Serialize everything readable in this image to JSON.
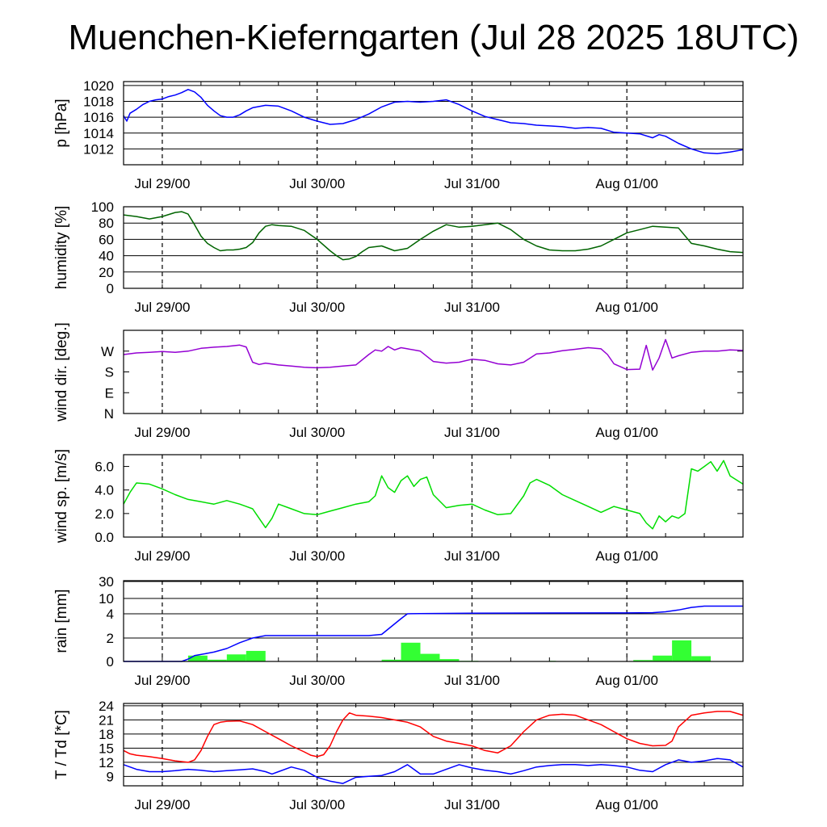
{
  "title": "Muenchen-Kieferngarten (Jul 28 2025 18UTC)",
  "chart_data": [
    {
      "type": "line",
      "name": "pressure",
      "ylabel": "p [hPa]",
      "ylim": [
        1010,
        1020.5
      ],
      "yticks": [
        "1012",
        "1014",
        "1016",
        "1018",
        "1020"
      ],
      "ytick_values": [
        1012,
        1014,
        1016,
        1018,
        1020
      ],
      "xticks": [
        "Jul 29/00",
        "Jul 30/00",
        "Jul 31/00",
        "Aug 01/00"
      ],
      "xtick_hours": [
        6,
        30,
        54,
        78
      ],
      "xlim_hours": [
        0,
        96
      ],
      "color": "#0000ff",
      "series": [
        {
          "x": [
            0,
            0.5,
            1,
            2,
            3,
            4,
            5,
            6,
            7,
            8,
            9,
            10,
            11,
            12,
            13,
            14,
            15,
            16,
            17,
            18,
            19,
            20,
            22,
            24,
            26,
            28,
            30,
            32,
            34,
            36,
            38,
            40,
            42,
            44,
            46,
            48,
            50,
            52,
            54,
            56,
            58,
            60,
            62,
            64,
            66,
            68,
            70,
            72,
            74,
            76,
            78,
            80,
            82,
            83,
            84,
            86,
            88,
            90,
            92,
            94,
            96
          ],
          "y": [
            1016.2,
            1015.5,
            1016.5,
            1017.0,
            1017.6,
            1018.0,
            1018.2,
            1018.3,
            1018.6,
            1018.8,
            1019.1,
            1019.5,
            1019.2,
            1018.5,
            1017.5,
            1016.8,
            1016.2,
            1016.0,
            1016.0,
            1016.3,
            1016.8,
            1017.2,
            1017.5,
            1017.4,
            1016.8,
            1016.0,
            1015.5,
            1015.1,
            1015.2,
            1015.7,
            1016.4,
            1017.3,
            1017.9,
            1018.0,
            1017.9,
            1018.0,
            1018.2,
            1017.6,
            1016.8,
            1016.1,
            1015.7,
            1015.3,
            1015.2,
            1015.0,
            1014.9,
            1014.8,
            1014.6,
            1014.7,
            1014.6,
            1014.1,
            1014.0,
            1013.9,
            1013.4,
            1013.8,
            1013.6,
            1012.7,
            1012.0,
            1011.5,
            1011.4,
            1011.6,
            1011.9
          ]
        }
      ]
    },
    {
      "type": "line",
      "name": "humidity",
      "ylabel": "humidity [%]",
      "ylim": [
        0,
        100
      ],
      "yticks": [
        "0",
        "20",
        "40",
        "60",
        "80",
        "100"
      ],
      "ytick_values": [
        0,
        20,
        40,
        60,
        80,
        100
      ],
      "xticks": [
        "Jul 29/00",
        "Jul 30/00",
        "Jul 31/00",
        "Aug 01/00"
      ],
      "xtick_hours": [
        6,
        30,
        54,
        78
      ],
      "xlim_hours": [
        0,
        96
      ],
      "color": "#006400",
      "series": [
        {
          "x": [
            0,
            2,
            4,
            6,
            8,
            9,
            10,
            11,
            12,
            13,
            14,
            15,
            16,
            17,
            18,
            19,
            20,
            21,
            22,
            23,
            24,
            26,
            28,
            30,
            32,
            33,
            34,
            35,
            36,
            37,
            38,
            40,
            42,
            44,
            46,
            48,
            50,
            52,
            54,
            56,
            58,
            60,
            62,
            64,
            66,
            68,
            70,
            72,
            74,
            76,
            78,
            80,
            82,
            84,
            86,
            88,
            90,
            92,
            94,
            96
          ],
          "y": [
            90,
            88,
            85,
            88,
            93,
            94,
            91,
            78,
            64,
            55,
            50,
            46,
            47,
            47,
            48,
            50,
            56,
            68,
            76,
            78,
            77,
            76,
            71,
            60,
            46,
            40,
            35,
            36,
            39,
            45,
            50,
            52,
            46,
            49,
            60,
            70,
            78,
            75,
            76,
            78,
            80,
            72,
            60,
            52,
            47,
            46,
            46,
            48,
            52,
            60,
            68,
            72,
            76,
            75,
            74,
            55,
            52,
            48,
            45,
            44
          ]
        }
      ]
    },
    {
      "type": "line",
      "name": "wind-direction",
      "ylabel": "wind dir. [deg.]",
      "ylim": [
        0,
        360
      ],
      "yticks": [
        "N",
        "E",
        "S",
        "W"
      ],
      "ytick_values": [
        0,
        90,
        180,
        270
      ],
      "xticks": [
        "Jul 29/00",
        "Jul 30/00",
        "Jul 31/00",
        "Aug 01/00"
      ],
      "xtick_hours": [
        6,
        30,
        54,
        78
      ],
      "xlim_hours": [
        0,
        96
      ],
      "color": "#9400d3",
      "series": [
        {
          "x": [
            0,
            2,
            4,
            6,
            8,
            10,
            12,
            14,
            16,
            18,
            19,
            20,
            21,
            22,
            24,
            26,
            28,
            30,
            32,
            34,
            36,
            38,
            39,
            40,
            41,
            42,
            43,
            44,
            46,
            48,
            50,
            52,
            54,
            56,
            58,
            60,
            62,
            64,
            66,
            68,
            70,
            72,
            74,
            75,
            76,
            78,
            80,
            81,
            82,
            83,
            84,
            85,
            86,
            88,
            90,
            92,
            94,
            96
          ],
          "y": [
            255,
            262,
            265,
            268,
            265,
            270,
            282,
            287,
            290,
            296,
            288,
            222,
            212,
            218,
            210,
            205,
            200,
            198,
            200,
            205,
            210,
            255,
            275,
            270,
            290,
            275,
            285,
            280,
            270,
            225,
            218,
            222,
            235,
            230,
            215,
            210,
            222,
            258,
            262,
            272,
            278,
            285,
            280,
            255,
            215,
            190,
            192,
            295,
            188,
            240,
            320,
            240,
            250,
            265,
            270,
            270,
            275,
            273
          ]
        }
      ]
    },
    {
      "type": "line",
      "name": "wind-speed",
      "ylabel": "wind sp. [m/s]",
      "ylim": [
        0,
        7
      ],
      "yticks": [
        "0.0",
        "2.0",
        "4.0",
        "6.0"
      ],
      "ytick_values": [
        0,
        2,
        4,
        6
      ],
      "xticks": [
        "Jul 29/00",
        "Jul 30/00",
        "Jul 31/00",
        "Aug 01/00"
      ],
      "xtick_hours": [
        6,
        30,
        54,
        78
      ],
      "xlim_hours": [
        0,
        96
      ],
      "color": "#00dd00",
      "series": [
        {
          "x": [
            0,
            1,
            2,
            4,
            6,
            8,
            10,
            12,
            14,
            16,
            18,
            19,
            20,
            21,
            22,
            23,
            24,
            26,
            28,
            30,
            32,
            34,
            36,
            38,
            39,
            40,
            41,
            42,
            43,
            44,
            45,
            46,
            47,
            48,
            50,
            52,
            54,
            56,
            58,
            60,
            62,
            63,
            64,
            66,
            68,
            70,
            72,
            74,
            76,
            78,
            80,
            81,
            82,
            83,
            84,
            85,
            86,
            87,
            88,
            89,
            90,
            91,
            92,
            93,
            94,
            96
          ],
          "y": [
            2.8,
            3.8,
            4.6,
            4.5,
            4.1,
            3.6,
            3.2,
            3.0,
            2.8,
            3.1,
            2.8,
            2.6,
            2.4,
            1.6,
            0.8,
            1.6,
            2.8,
            2.4,
            2.0,
            1.9,
            2.2,
            2.5,
            2.8,
            3.0,
            3.5,
            5.2,
            4.2,
            3.8,
            4.8,
            5.2,
            4.3,
            4.9,
            5.1,
            3.6,
            2.5,
            2.7,
            2.8,
            2.3,
            1.9,
            2.0,
            3.5,
            4.6,
            4.9,
            4.4,
            3.6,
            3.1,
            2.6,
            2.1,
            2.6,
            2.3,
            2.0,
            1.2,
            0.7,
            1.8,
            1.3,
            1.8,
            1.6,
            2.0,
            5.8,
            5.6,
            6.0,
            6.4,
            5.6,
            6.5,
            5.2,
            4.5
          ]
        }
      ]
    },
    {
      "type": "bar+line",
      "name": "rain",
      "ylabel": "rain [mm]",
      "yticks": [
        "0",
        "2",
        "4",
        "10",
        "30"
      ],
      "ytick_values": [
        0,
        2,
        4,
        10,
        30
      ],
      "xticks": [
        "Jul 29/00",
        "Jul 30/00",
        "Jul 31/00",
        "Aug 01/00"
      ],
      "xtick_hours": [
        6,
        30,
        54,
        78
      ],
      "xlim_hours": [
        0,
        96
      ],
      "bar_color": "#33ff33",
      "line_color": "#0000ff",
      "bars": {
        "x_start": [
          10,
          13,
          16,
          19,
          40,
          43,
          46,
          49,
          52,
          66,
          79,
          82,
          85,
          88
        ],
        "x_end": [
          13,
          16,
          19,
          22,
          43,
          46,
          49,
          52,
          55,
          67,
          82,
          85,
          88,
          91
        ],
        "values": [
          0.5,
          0.15,
          0.6,
          0.9,
          0.15,
          1.6,
          0.65,
          0.2,
          0.05,
          0.05,
          0.12,
          0.5,
          1.8,
          0.45
        ]
      },
      "series": [
        {
          "x": [
            0,
            9,
            10,
            11,
            13,
            14,
            16,
            18,
            19,
            20,
            22,
            30,
            38,
            40,
            43,
            44,
            46,
            52,
            54,
            66,
            78,
            82,
            84,
            86,
            88,
            90,
            96
          ],
          "y": [
            0,
            0,
            0.2,
            0.5,
            0.7,
            0.8,
            1.1,
            1.6,
            1.8,
            2.0,
            2.2,
            2.2,
            2.2,
            2.3,
            3.6,
            4.0,
            4.1,
            4.2,
            4.25,
            4.3,
            4.35,
            4.45,
            4.8,
            5.5,
            6.5,
            7.0,
            7.0
          ]
        }
      ]
    },
    {
      "type": "line",
      "name": "temperature-dewpoint",
      "ylabel": "T / Td [*C]",
      "ylim": [
        7,
        24.5
      ],
      "yticks": [
        "9",
        "12",
        "15",
        "18",
        "21",
        "24"
      ],
      "ytick_values": [
        9,
        12,
        15,
        18,
        21,
        24
      ],
      "xticks": [
        "Jul 29/00",
        "Jul 30/00",
        "Jul 31/00",
        "Aug 01/00"
      ],
      "xtick_hours": [
        6,
        30,
        54,
        78
      ],
      "xlim_hours": [
        0,
        96
      ],
      "series": [
        {
          "color": "#ff0000",
          "x": [
            0,
            1,
            2,
            4,
            6,
            8,
            10,
            11,
            12,
            13,
            14,
            15,
            16,
            18,
            20,
            22,
            24,
            26,
            28,
            29,
            30,
            31,
            32,
            33,
            34,
            35,
            36,
            38,
            40,
            42,
            44,
            46,
            48,
            50,
            52,
            54,
            56,
            58,
            60,
            62,
            64,
            66,
            68,
            70,
            72,
            74,
            76,
            78,
            80,
            82,
            84,
            85,
            86,
            88,
            90,
            92,
            94,
            96
          ],
          "y": [
            14.5,
            13.8,
            13.5,
            13.2,
            12.8,
            12.3,
            12.0,
            12.5,
            14.5,
            17.5,
            20.0,
            20.5,
            20.7,
            20.8,
            20.0,
            18.5,
            17.0,
            15.5,
            14.2,
            13.5,
            13.2,
            13.6,
            15.5,
            18.5,
            21.0,
            22.5,
            22.0,
            21.8,
            21.5,
            21.0,
            20.5,
            19.5,
            17.5,
            16.5,
            16.0,
            15.5,
            14.5,
            14.0,
            15.5,
            18.5,
            21.0,
            22.0,
            22.2,
            22.0,
            21.0,
            20.0,
            18.5,
            17.0,
            16.0,
            15.5,
            15.6,
            16.5,
            19.5,
            22.0,
            22.5,
            22.8,
            22.8,
            22.0
          ]
        },
        {
          "color": "#0000ff",
          "x": [
            0,
            2,
            4,
            6,
            8,
            10,
            12,
            14,
            16,
            18,
            20,
            22,
            23,
            24,
            26,
            28,
            30,
            32,
            34,
            36,
            38,
            40,
            42,
            44,
            46,
            48,
            50,
            52,
            54,
            56,
            58,
            60,
            62,
            64,
            66,
            68,
            70,
            72,
            74,
            76,
            78,
            80,
            82,
            84,
            86,
            88,
            90,
            92,
            94,
            96
          ],
          "y": [
            11.5,
            10.5,
            10.0,
            10.0,
            10.2,
            10.5,
            10.3,
            10.0,
            10.2,
            10.4,
            10.6,
            10.0,
            9.5,
            10.0,
            11.0,
            10.3,
            8.8,
            8.0,
            7.5,
            8.8,
            9.0,
            9.2,
            10.0,
            11.5,
            9.5,
            9.5,
            10.5,
            11.5,
            10.8,
            10.3,
            10.0,
            9.5,
            10.2,
            11.0,
            11.3,
            11.5,
            11.5,
            11.3,
            11.5,
            11.3,
            11.0,
            10.3,
            10.0,
            11.5,
            12.5,
            12.0,
            12.3,
            12.8,
            12.5,
            11.0
          ]
        }
      ]
    }
  ]
}
